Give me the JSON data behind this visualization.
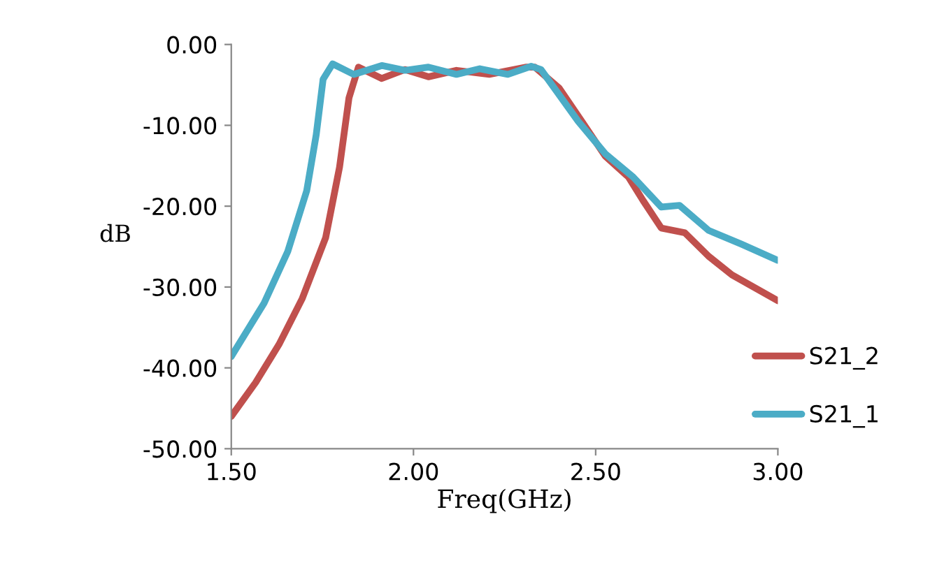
{
  "chart_data": {
    "type": "line",
    "xlabel": "Freq(GHz)",
    "ylabel": "dB",
    "xlim": [
      1.5,
      3.0
    ],
    "ylim": [
      -50,
      0
    ],
    "xticks": [
      {
        "value": 1.5,
        "label": "1.50"
      },
      {
        "value": 2.0,
        "label": "2.00"
      },
      {
        "value": 2.5,
        "label": "2.50"
      },
      {
        "value": 3.0,
        "label": "3.00"
      }
    ],
    "yticks": [
      {
        "value": -50,
        "label": "-50.00"
      },
      {
        "value": -40,
        "label": "-40.00"
      },
      {
        "value": -30,
        "label": "-30.00"
      },
      {
        "value": -20,
        "label": "-20.00"
      },
      {
        "value": -10,
        "label": "-10.00"
      },
      {
        "value": 0,
        "label": "0.00"
      }
    ],
    "grid": false,
    "legend": "right",
    "marker": "none",
    "line_style": "solid",
    "series": [
      {
        "name": "S21_2",
        "color": "#c0504d",
        "x": [
          1.5,
          1.567,
          1.631,
          1.695,
          1.759,
          1.797,
          1.823,
          1.849,
          1.913,
          1.977,
          2.041,
          2.118,
          2.208,
          2.31,
          2.333,
          2.4,
          2.462,
          2.526,
          2.59,
          2.63,
          2.68,
          2.745,
          2.81,
          2.874,
          3.0
        ],
        "values": [
          -46.0,
          -41.8,
          -37.1,
          -31.4,
          -23.9,
          -15.2,
          -6.6,
          -2.8,
          -4.2,
          -3.1,
          -4.0,
          -3.2,
          -3.7,
          -2.8,
          -2.8,
          -5.4,
          -9.5,
          -13.8,
          -16.4,
          -19.3,
          -22.7,
          -23.3,
          -26.2,
          -28.5,
          -31.7
        ]
      },
      {
        "name": "S21_1",
        "color": "#4bacc6",
        "x": [
          1.5,
          1.59,
          1.655,
          1.707,
          1.733,
          1.752,
          1.778,
          1.836,
          1.913,
          1.977,
          2.041,
          2.118,
          2.182,
          2.259,
          2.323,
          2.35,
          2.452,
          2.526,
          2.603,
          2.68,
          2.73,
          2.81,
          2.9,
          3.0
        ],
        "values": [
          -38.6,
          -32.0,
          -25.6,
          -18.1,
          -11.2,
          -4.3,
          -2.4,
          -3.7,
          -2.6,
          -3.2,
          -2.8,
          -3.7,
          -3.0,
          -3.7,
          -2.7,
          -3.1,
          -9.5,
          -13.5,
          -16.4,
          -20.1,
          -19.9,
          -23.0,
          -24.7,
          -26.7
        ]
      }
    ]
  }
}
